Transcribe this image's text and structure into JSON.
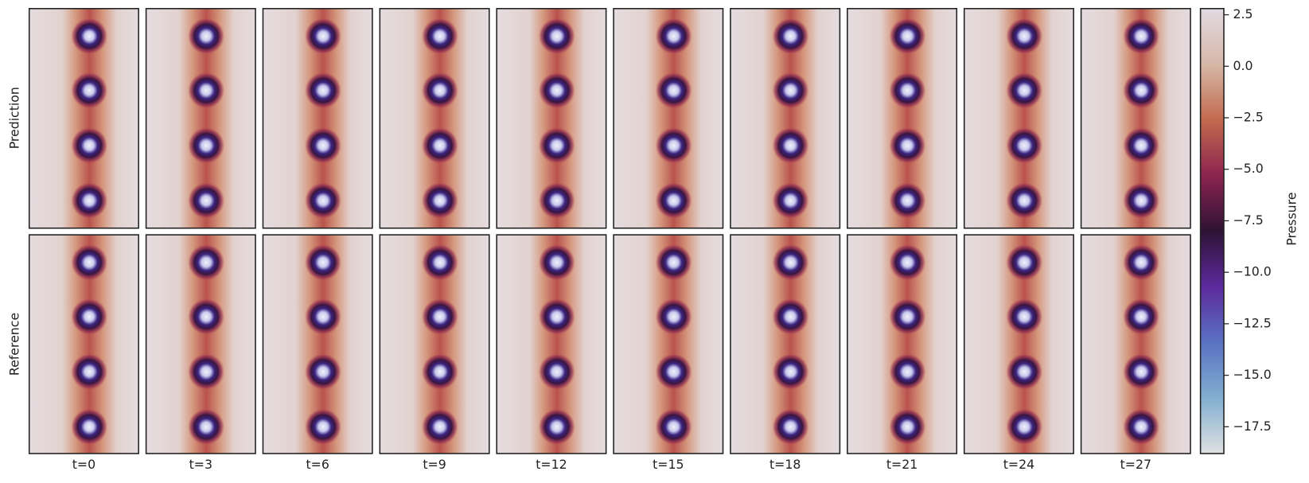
{
  "chart_data": {
    "type": "heatmap-grid",
    "rows": [
      "Prediction",
      "Reference"
    ],
    "categories": [
      "t=0",
      "t=3",
      "t=6",
      "t=9",
      "t=12",
      "t=15",
      "t=18",
      "t=21",
      "t=24",
      "t=27"
    ],
    "colorbar": {
      "label": "Pressure",
      "ylim": [
        -18.8,
        2.8
      ],
      "yticks": [
        2.5,
        {
          "value": 0,
          "label": "0.0"
        },
        {
          "value": -2.5,
          "label": "−2.5"
        },
        {
          "value": -5,
          "label": "−5.0"
        },
        {
          "value": -7.5,
          "label": "−7.5"
        },
        {
          "value": -10,
          "label": "−10.0"
        },
        {
          "value": -12.5,
          "label": "−12.5"
        },
        {
          "value": -15,
          "label": "−15.0"
        },
        {
          "value": -17.5,
          "label": "−17.5"
        }
      ],
      "colors": [
        "#e2d9e2",
        "#d6b8a8",
        "#c26a4e",
        "#8c2450",
        "#2e1234",
        "#5c2a9c",
        "#5a72c2",
        "#82aed0",
        "#dfe1e1"
      ]
    }
  }
}
